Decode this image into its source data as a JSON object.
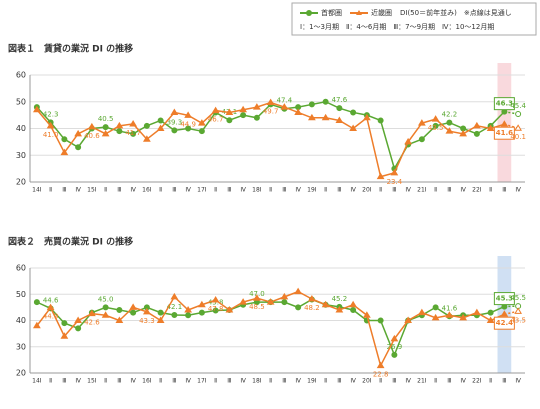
{
  "legend_note": [
    "DI(50＝前年並み)　※点線は見通し",
    "Ⅰ：1～3月期　Ⅱ：4～6月期　Ⅲ：7～9月期　Ⅳ：10～12月期"
  ],
  "chart_data": [
    {
      "type": "line",
      "title": "図表１　賃貸の業況 DI の推移",
      "categories": [
        "14Ⅰ",
        "Ⅱ",
        "Ⅲ",
        "Ⅳ",
        "15Ⅰ",
        "Ⅱ",
        "Ⅲ",
        "Ⅳ",
        "16Ⅰ",
        "Ⅱ",
        "Ⅲ",
        "Ⅳ",
        "17Ⅰ",
        "Ⅱ",
        "Ⅲ",
        "Ⅳ",
        "18Ⅰ",
        "Ⅱ",
        "Ⅲ",
        "Ⅳ",
        "19Ⅰ",
        "Ⅱ",
        "Ⅲ",
        "Ⅳ",
        "20Ⅰ",
        "Ⅱ",
        "Ⅲ",
        "Ⅳ",
        "21Ⅰ",
        "Ⅱ",
        "Ⅲ",
        "Ⅳ",
        "22Ⅰ",
        "Ⅱ",
        "Ⅲ",
        "Ⅳ"
      ],
      "ylim": [
        20,
        60
      ],
      "yticks": [
        20,
        30,
        40,
        50,
        60
      ],
      "series": [
        {
          "name": "首都圏",
          "color": "#5aa832",
          "values": [
            48,
            42.3,
            36,
            33,
            40,
            40.5,
            39,
            38,
            41,
            43,
            39.3,
            40,
            39,
            46,
            43.1,
            45,
            44,
            49,
            47.4,
            48,
            49,
            50,
            47.6,
            46,
            45,
            43,
            25,
            34,
            36,
            41,
            42.2,
            40,
            38,
            41,
            46.3,
            45.4
          ],
          "value_labels": [
            null,
            "42.3",
            null,
            null,
            null,
            "40.5",
            null,
            null,
            null,
            null,
            "39.3",
            null,
            null,
            null,
            "43.1",
            null,
            null,
            null,
            "47.4",
            null,
            null,
            null,
            "47.6",
            null,
            null,
            null,
            null,
            null,
            null,
            null,
            "42.2",
            null,
            null,
            null,
            "46.3",
            "45.4"
          ]
        },
        {
          "name": "近畿圏",
          "color": "#ee7d2a",
          "values": [
            47,
            41.0,
            31,
            38,
            40.6,
            38,
            41,
            41.7,
            36,
            40,
            46,
            44.9,
            42,
            46.7,
            46,
            47,
            48,
            49.7,
            48,
            46,
            44,
            44,
            43,
            40,
            44,
            22,
            23.4,
            35,
            42,
            43.5,
            39,
            38,
            41,
            40,
            41.6,
            40.1
          ],
          "value_labels": [
            null,
            "41.0",
            null,
            null,
            "40.6",
            null,
            null,
            "41.7",
            null,
            null,
            null,
            "44.9",
            null,
            "46.7",
            null,
            null,
            null,
            "49.7",
            null,
            null,
            null,
            null,
            null,
            null,
            null,
            null,
            "23.4",
            null,
            null,
            "43.5",
            null,
            null,
            null,
            null,
            "41.6",
            "40.1"
          ]
        }
      ]
    },
    {
      "type": "line",
      "title": "図表２　売買の業況 DI の推移",
      "categories": [
        "14Ⅰ",
        "Ⅱ",
        "Ⅲ",
        "Ⅳ",
        "15Ⅰ",
        "Ⅱ",
        "Ⅲ",
        "Ⅳ",
        "16Ⅰ",
        "Ⅱ",
        "Ⅲ",
        "Ⅳ",
        "17Ⅰ",
        "Ⅱ",
        "Ⅲ",
        "Ⅳ",
        "18Ⅰ",
        "Ⅱ",
        "Ⅲ",
        "Ⅳ",
        "19Ⅰ",
        "Ⅱ",
        "Ⅲ",
        "Ⅳ",
        "20Ⅰ",
        "Ⅱ",
        "Ⅲ",
        "Ⅳ",
        "21Ⅰ",
        "Ⅱ",
        "Ⅲ",
        "Ⅳ",
        "22Ⅰ",
        "Ⅱ",
        "Ⅲ",
        "Ⅳ"
      ],
      "ylim": [
        20,
        60
      ],
      "yticks": [
        20,
        30,
        40,
        50,
        60
      ],
      "series": [
        {
          "name": "首都圏",
          "color": "#5aa832",
          "values": [
            47,
            44.6,
            39,
            37,
            43,
            45.0,
            44,
            43,
            45,
            43,
            42.1,
            42,
            43,
            43.8,
            44,
            46,
            47.0,
            47,
            47,
            45,
            48,
            46,
            45.2,
            44,
            40,
            40,
            26.9,
            40,
            42,
            45,
            41.6,
            42,
            42,
            43,
            45.3,
            45.5
          ],
          "value_labels": [
            null,
            "44.6",
            null,
            null,
            null,
            "45.0",
            null,
            null,
            null,
            null,
            "42.1",
            null,
            null,
            "43.8",
            null,
            null,
            "47.0",
            null,
            null,
            null,
            null,
            null,
            "45.2",
            null,
            null,
            null,
            "26.9",
            null,
            null,
            null,
            "41.6",
            null,
            null,
            null,
            "45.3",
            "45.5"
          ]
        },
        {
          "name": "近畿圏",
          "color": "#ee7d2a",
          "values": [
            38,
            44.9,
            34,
            40,
            42.6,
            42,
            40,
            45,
            43.3,
            40,
            49,
            44,
            46,
            47.8,
            44,
            47,
            48.5,
            47,
            49,
            51,
            48.2,
            46,
            44,
            46,
            42,
            22.8,
            33,
            40,
            43,
            41,
            42,
            41,
            43,
            40,
            42.4,
            43.5
          ],
          "value_labels": [
            null,
            "44.9",
            null,
            null,
            "42.6",
            null,
            null,
            null,
            "43.3",
            null,
            null,
            null,
            null,
            "47.8",
            null,
            null,
            "48.5",
            null,
            null,
            null,
            "48.2",
            null,
            null,
            null,
            null,
            "22.8",
            null,
            null,
            null,
            null,
            null,
            null,
            null,
            null,
            "42.4",
            "43.5"
          ]
        }
      ]
    }
  ]
}
